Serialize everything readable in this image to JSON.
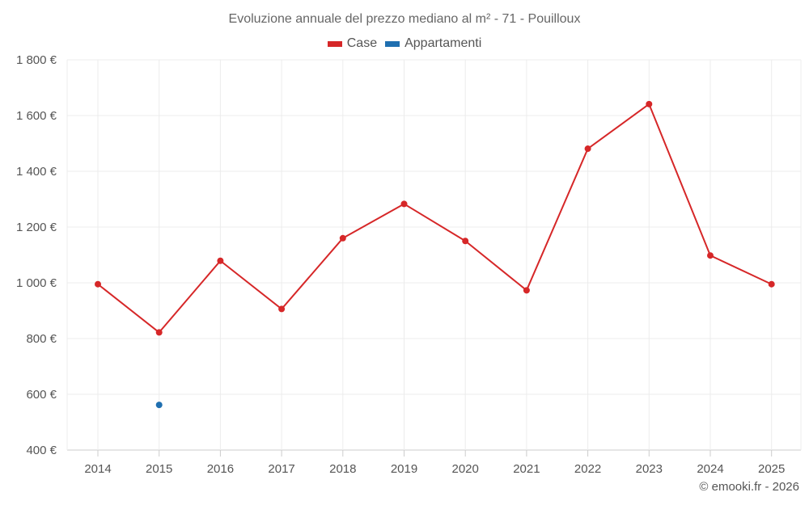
{
  "chart_data": {
    "type": "line",
    "title": "Evoluzione annuale del prezzo mediano al m² - 71 - Pouilloux",
    "categories": [
      "2014",
      "2015",
      "2016",
      "2017",
      "2018",
      "2019",
      "2020",
      "2021",
      "2022",
      "2023",
      "2024",
      "2025"
    ],
    "series": [
      {
        "name": "Case",
        "color": "#d62728",
        "values": [
          995,
          822,
          1079,
          906,
          1160,
          1283,
          1150,
          973,
          1481,
          1641,
          1098,
          995
        ]
      },
      {
        "name": "Appartamenti",
        "color": "#1f6fb0",
        "values": [
          null,
          562,
          null,
          null,
          null,
          null,
          null,
          null,
          null,
          null,
          null,
          null
        ]
      }
    ],
    "y_ticks": [
      400,
      600,
      800,
      1000,
      1200,
      1400,
      1600,
      1800
    ],
    "y_tick_labels": [
      "400 €",
      "600 €",
      "800 €",
      "1 000 €",
      "1 200 €",
      "1 400 €",
      "1 600 €",
      "1 800 €"
    ],
    "ylim": [
      400,
      1800
    ],
    "xlabel": "",
    "ylabel": "",
    "legend_position": "top-center",
    "grid": true
  },
  "credit": "© emooki.fr - 2026"
}
